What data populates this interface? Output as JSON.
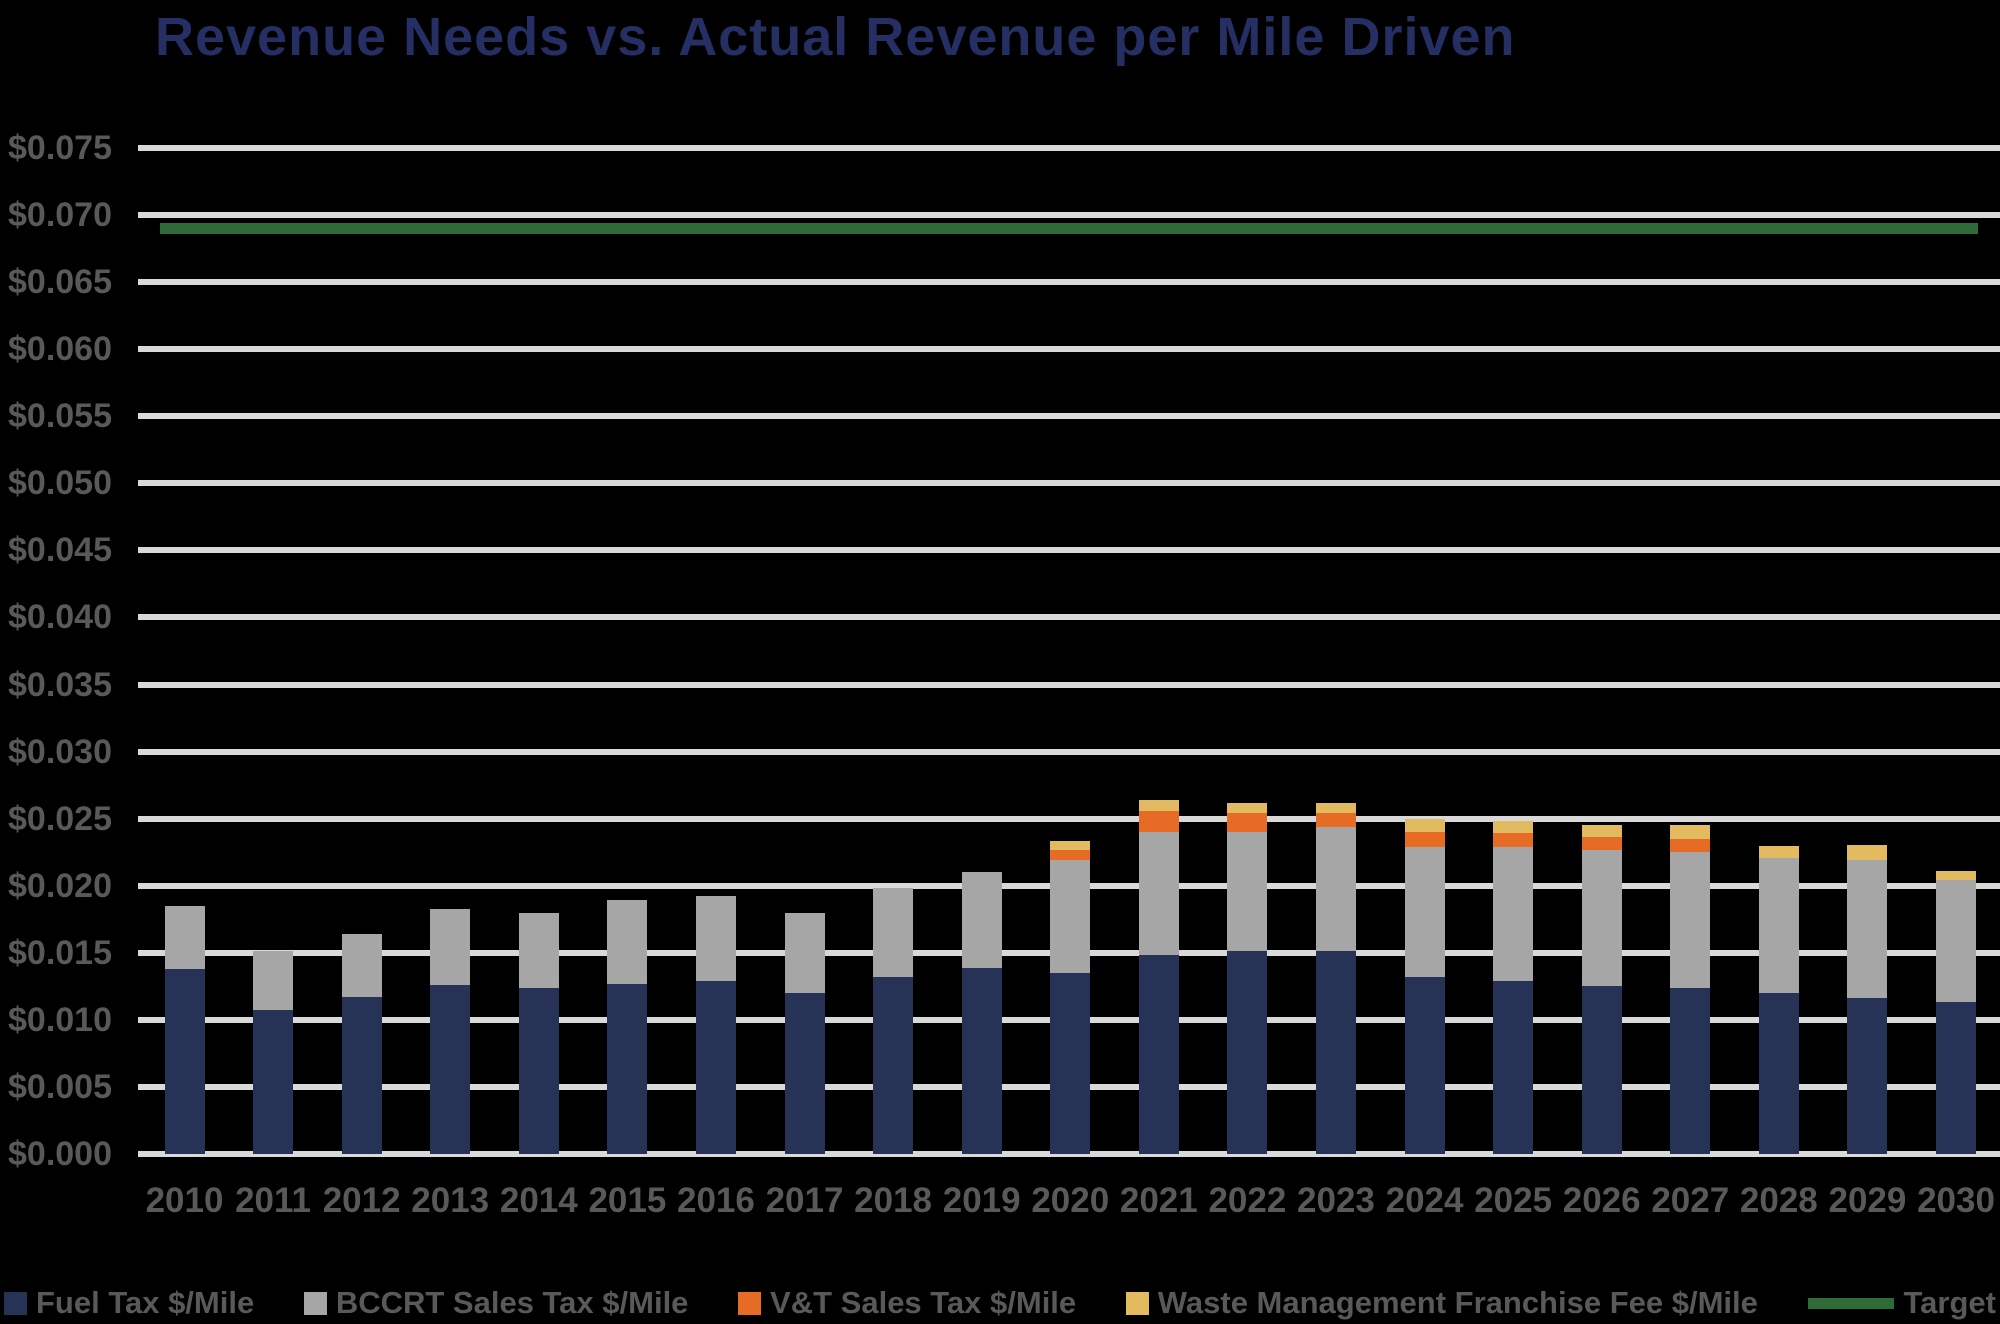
{
  "title": "Revenue Needs vs. Actual Revenue per Mile Driven",
  "colors": {
    "background": "#000000",
    "title_text": "#252F63",
    "axis_text": "#595959",
    "gridline": "#D9D9D9",
    "fuel_tax": "#263357",
    "bccrt_sales_tax": "#A6A6A6",
    "vt_sales_tax": "#E66C26",
    "waste_mgmt_fee": "#E2BA5F",
    "target_line": "#2E6B39"
  },
  "chart_data": {
    "type": "bar",
    "stacked": true,
    "grid": true,
    "legend_position": "bottom",
    "title": "Revenue Needs vs. Actual Revenue per Mile Driven",
    "xlabel": "",
    "ylabel": "",
    "ylim": [
      0,
      0.075
    ],
    "ytick_step": 0.005,
    "ytick_prefix": "$",
    "ytick_decimals": 3,
    "categories": [
      2010,
      2011,
      2012,
      2013,
      2014,
      2015,
      2016,
      2017,
      2018,
      2019,
      2020,
      2021,
      2022,
      2023,
      2024,
      2025,
      2026,
      2027,
      2028,
      2029,
      2030
    ],
    "series": [
      {
        "name": "Fuel Tax $/Mile",
        "color": "#263357",
        "values": [
          0.0138,
          0.0107,
          0.0117,
          0.0126,
          0.0124,
          0.0127,
          0.0129,
          0.012,
          0.0132,
          0.0139,
          0.0135,
          0.0148,
          0.0151,
          0.0151,
          0.0132,
          0.0129,
          0.0125,
          0.0124,
          0.012,
          0.0116,
          0.0113
        ]
      },
      {
        "name": "BCCRT Sales Tax $/Mile",
        "color": "#A6A6A6",
        "values": [
          0.0047,
          0.0044,
          0.0047,
          0.0057,
          0.0056,
          0.0062,
          0.0063,
          0.006,
          0.0066,
          0.0071,
          0.0084,
          0.0092,
          0.0089,
          0.0093,
          0.0097,
          0.01,
          0.0102,
          0.0101,
          0.0101,
          0.0103,
          0.0091
        ]
      },
      {
        "name": "V&T Sales Tax $/Mile",
        "color": "#E66C26",
        "values": [
          0,
          0,
          0,
          0,
          0,
          0,
          0,
          0,
          0,
          0,
          0.0008,
          0.0016,
          0.0014,
          0.001,
          0.0011,
          0.001,
          0.0009,
          0.001,
          0,
          0,
          0
        ]
      },
      {
        "name": "Waste Management Franchise Fee $/Mile",
        "color": "#E2BA5F",
        "values": [
          0,
          0,
          0,
          0,
          0,
          0,
          0,
          0,
          0,
          0,
          0.0006,
          0.0008,
          0.0008,
          0.0008,
          0.001,
          0.0009,
          0.0009,
          0.001,
          0.0009,
          0.0011,
          0.0007
        ]
      }
    ],
    "target_line": {
      "label": "Target",
      "value": 0.069,
      "color": "#2E6B39"
    }
  }
}
